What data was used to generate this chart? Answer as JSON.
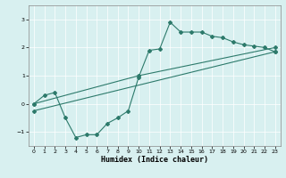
{
  "xlabel": "Humidex (Indice chaleur)",
  "bg_color": "#d8f0f0",
  "line_color": "#2d7a6b",
  "grid_color": "#ffffff",
  "xlim": [
    -0.5,
    23.5
  ],
  "ylim": [
    -1.5,
    3.5
  ],
  "yticks": [
    -1,
    0,
    1,
    2,
    3
  ],
  "xticks": [
    0,
    1,
    2,
    3,
    4,
    5,
    6,
    7,
    8,
    9,
    10,
    11,
    12,
    13,
    14,
    15,
    16,
    17,
    18,
    19,
    20,
    21,
    22,
    23
  ],
  "line1_x": [
    0,
    1,
    2,
    3,
    4,
    5,
    6,
    7,
    8,
    9,
    10,
    11,
    12,
    13,
    14,
    15,
    16,
    17,
    18,
    19,
    20,
    21,
    22,
    23
  ],
  "line1_y": [
    0.0,
    0.3,
    0.4,
    -0.5,
    -1.2,
    -1.1,
    -1.1,
    -0.7,
    -0.5,
    -0.25,
    0.95,
    1.9,
    1.95,
    2.9,
    2.55,
    2.55,
    2.55,
    2.4,
    2.35,
    2.2,
    2.1,
    2.05,
    2.0,
    1.85
  ],
  "line2_x": [
    0,
    10,
    23
  ],
  "line2_y": [
    0.0,
    1.0,
    2.0
  ],
  "line3_x": [
    0,
    23
  ],
  "line3_y": [
    -0.25,
    1.85
  ],
  "marker_size": 2.0,
  "line_width": 0.8,
  "xlabel_fontsize": 6.0,
  "tick_fontsize": 4.5
}
